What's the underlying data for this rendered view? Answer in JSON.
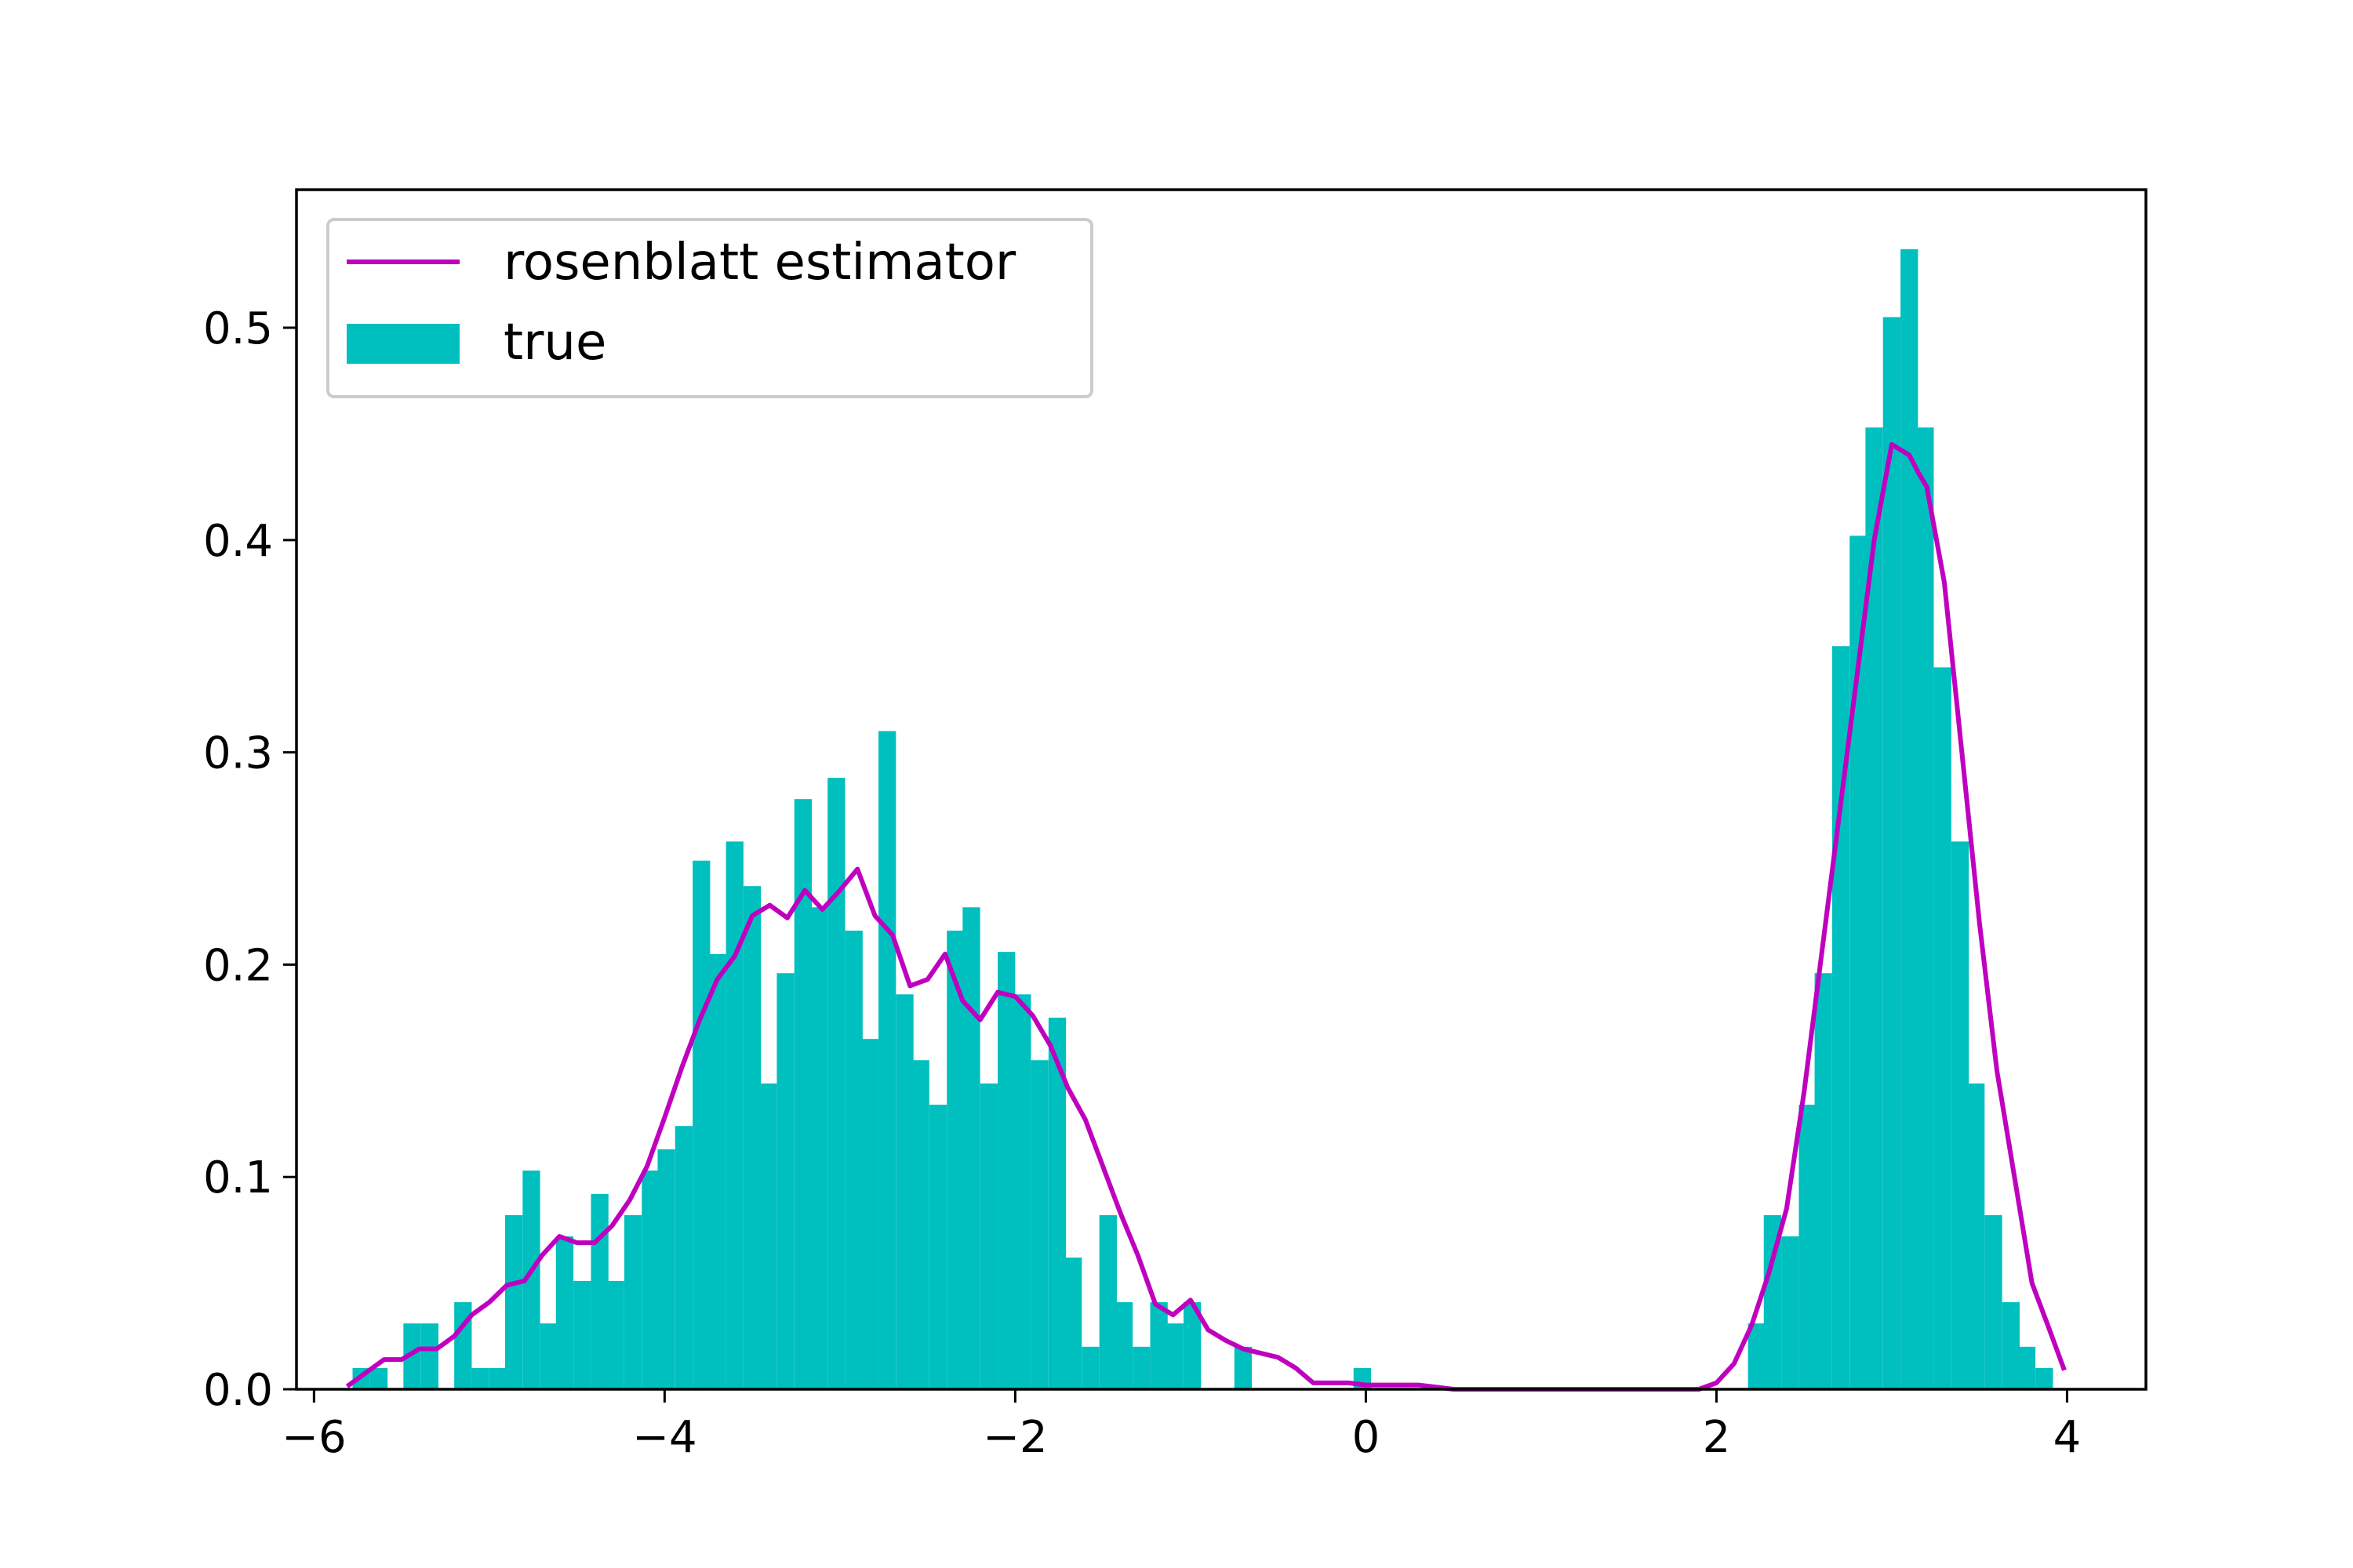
{
  "chart_data": {
    "type": "histogram+line",
    "title": "",
    "xlabel": "",
    "ylabel": "",
    "xlim": [
      -6.1,
      4.45
    ],
    "ylim": [
      0,
      0.565
    ],
    "grid": false,
    "legend_position": "top-left",
    "xticks": [
      -6,
      -4,
      -2,
      0,
      2,
      4
    ],
    "xtick_labels": [
      "−6",
      "−4",
      "−2",
      "0",
      "2",
      "4"
    ],
    "yticks": [
      0.0,
      0.1,
      0.2,
      0.3,
      0.4,
      0.5
    ],
    "ytick_labels": [
      "0.0",
      "0.1",
      "0.2",
      "0.3",
      "0.4",
      "0.5"
    ],
    "series": [
      {
        "name": "rosenblatt estimator",
        "type": "line",
        "color": "#bf00bf",
        "points": [
          [
            -5.8,
            0.002
          ],
          [
            -5.7,
            0.008
          ],
          [
            -5.6,
            0.014
          ],
          [
            -5.5,
            0.014
          ],
          [
            -5.4,
            0.019
          ],
          [
            -5.3,
            0.019
          ],
          [
            -5.2,
            0.025
          ],
          [
            -5.1,
            0.035
          ],
          [
            -5.0,
            0.041
          ],
          [
            -4.9,
            0.049
          ],
          [
            -4.8,
            0.051
          ],
          [
            -4.7,
            0.063
          ],
          [
            -4.6,
            0.072
          ],
          [
            -4.5,
            0.069
          ],
          [
            -4.4,
            0.069
          ],
          [
            -4.3,
            0.077
          ],
          [
            -4.2,
            0.089
          ],
          [
            -4.1,
            0.105
          ],
          [
            -4.0,
            0.128
          ],
          [
            -3.9,
            0.152
          ],
          [
            -3.8,
            0.174
          ],
          [
            -3.7,
            0.193
          ],
          [
            -3.6,
            0.204
          ],
          [
            -3.5,
            0.223
          ],
          [
            -3.4,
            0.228
          ],
          [
            -3.3,
            0.222
          ],
          [
            -3.2,
            0.235
          ],
          [
            -3.1,
            0.226
          ],
          [
            -3.0,
            0.235
          ],
          [
            -2.9,
            0.245
          ],
          [
            -2.8,
            0.223
          ],
          [
            -2.7,
            0.214
          ],
          [
            -2.6,
            0.19
          ],
          [
            -2.5,
            0.193
          ],
          [
            -2.4,
            0.205
          ],
          [
            -2.3,
            0.183
          ],
          [
            -2.2,
            0.174
          ],
          [
            -2.1,
            0.187
          ],
          [
            -2.0,
            0.185
          ],
          [
            -1.9,
            0.176
          ],
          [
            -1.8,
            0.162
          ],
          [
            -1.7,
            0.142
          ],
          [
            -1.6,
            0.127
          ],
          [
            -1.5,
            0.105
          ],
          [
            -1.4,
            0.083
          ],
          [
            -1.3,
            0.063
          ],
          [
            -1.2,
            0.04
          ],
          [
            -1.1,
            0.035
          ],
          [
            -1.0,
            0.042
          ],
          [
            -0.9,
            0.028
          ],
          [
            -0.8,
            0.023
          ],
          [
            -0.7,
            0.019
          ],
          [
            -0.6,
            0.017
          ],
          [
            -0.5,
            0.015
          ],
          [
            -0.4,
            0.01
          ],
          [
            -0.3,
            0.003
          ],
          [
            -0.2,
            0.003
          ],
          [
            -0.1,
            0.003
          ],
          [
            0.0,
            0.002
          ],
          [
            0.1,
            0.002
          ],
          [
            0.2,
            0.002
          ],
          [
            0.3,
            0.002
          ],
          [
            0.4,
            0.001
          ],
          [
            0.5,
            0.0
          ],
          [
            1.0,
            0.0
          ],
          [
            1.5,
            0.0
          ],
          [
            1.9,
            0.0
          ],
          [
            2.0,
            0.003
          ],
          [
            2.1,
            0.012
          ],
          [
            2.2,
            0.03
          ],
          [
            2.3,
            0.055
          ],
          [
            2.4,
            0.085
          ],
          [
            2.5,
            0.14
          ],
          [
            2.6,
            0.205
          ],
          [
            2.7,
            0.27
          ],
          [
            2.8,
            0.335
          ],
          [
            2.9,
            0.4
          ],
          [
            3.0,
            0.445
          ],
          [
            3.1,
            0.44
          ],
          [
            3.15,
            0.432
          ],
          [
            3.2,
            0.425
          ],
          [
            3.3,
            0.38
          ],
          [
            3.4,
            0.3
          ],
          [
            3.5,
            0.22
          ],
          [
            3.6,
            0.15
          ],
          [
            3.7,
            0.1
          ],
          [
            3.8,
            0.05
          ],
          [
            3.9,
            0.028
          ],
          [
            3.98,
            0.01
          ]
        ]
      },
      {
        "name": "true",
        "type": "histogram",
        "color": "#00bfbf",
        "bin_width": 0.097,
        "bins": [
          [
            -5.78,
            0.01
          ],
          [
            -5.68,
            0.01
          ],
          [
            -5.59,
            0.0
          ],
          [
            -5.49,
            0.031
          ],
          [
            -5.39,
            0.031
          ],
          [
            -5.3,
            0.0
          ],
          [
            -5.2,
            0.041
          ],
          [
            -5.1,
            0.01
          ],
          [
            -5.0,
            0.01
          ],
          [
            -4.91,
            0.082
          ],
          [
            -4.81,
            0.103
          ],
          [
            -4.71,
            0.031
          ],
          [
            -4.62,
            0.072
          ],
          [
            -4.52,
            0.051
          ],
          [
            -4.42,
            0.092
          ],
          [
            -4.33,
            0.051
          ],
          [
            -4.23,
            0.082
          ],
          [
            -4.13,
            0.103
          ],
          [
            -4.04,
            0.113
          ],
          [
            -3.94,
            0.124
          ],
          [
            -3.84,
            0.249
          ],
          [
            -3.75,
            0.205
          ],
          [
            -3.65,
            0.258
          ],
          [
            -3.55,
            0.237
          ],
          [
            -3.46,
            0.144
          ],
          [
            -3.36,
            0.196
          ],
          [
            -3.26,
            0.278
          ],
          [
            -3.17,
            0.227
          ],
          [
            -3.07,
            0.288
          ],
          [
            -2.97,
            0.216
          ],
          [
            -2.88,
            0.165
          ],
          [
            -2.78,
            0.31
          ],
          [
            -2.68,
            0.186
          ],
          [
            -2.59,
            0.155
          ],
          [
            -2.49,
            0.134
          ],
          [
            -2.39,
            0.216
          ],
          [
            -2.3,
            0.227
          ],
          [
            -2.2,
            0.144
          ],
          [
            -2.1,
            0.206
          ],
          [
            -2.01,
            0.186
          ],
          [
            -1.91,
            0.155
          ],
          [
            -1.81,
            0.175
          ],
          [
            -1.72,
            0.062
          ],
          [
            -1.62,
            0.02
          ],
          [
            -1.52,
            0.082
          ],
          [
            -1.43,
            0.041
          ],
          [
            -1.33,
            0.02
          ],
          [
            -1.23,
            0.041
          ],
          [
            -1.14,
            0.031
          ],
          [
            -1.04,
            0.041
          ],
          [
            -0.94,
            0.0
          ],
          [
            -0.85,
            0.0
          ],
          [
            -0.75,
            0.02
          ],
          [
            -0.65,
            0.0
          ],
          [
            -0.56,
            0.0
          ],
          [
            -0.46,
            0.0
          ],
          [
            -0.36,
            0.0
          ],
          [
            -0.27,
            0.0
          ],
          [
            -0.17,
            0.0
          ],
          [
            -0.07,
            0.01
          ],
          [
            2.18,
            0.031
          ],
          [
            2.27,
            0.082
          ],
          [
            2.37,
            0.072
          ],
          [
            2.47,
            0.134
          ],
          [
            2.56,
            0.196
          ],
          [
            2.66,
            0.35
          ],
          [
            2.76,
            0.402
          ],
          [
            2.85,
            0.453
          ],
          [
            2.95,
            0.505
          ],
          [
            3.05,
            0.537
          ],
          [
            3.14,
            0.453
          ],
          [
            3.24,
            0.34
          ],
          [
            3.34,
            0.258
          ],
          [
            3.43,
            0.144
          ],
          [
            3.53,
            0.082
          ],
          [
            3.63,
            0.041
          ],
          [
            3.72,
            0.02
          ],
          [
            3.82,
            0.01
          ]
        ]
      }
    ]
  }
}
